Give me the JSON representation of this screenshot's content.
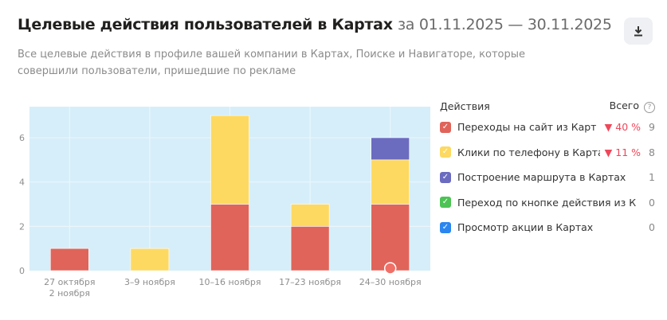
{
  "header": {
    "title": "Целевые действия пользователей в Картах",
    "period": "за 01.11.2025 — 30.11.2025",
    "subtitle": "Все целевые действия в профиле вашей компании в Картах, Поиске и Навигаторе, которые совершили пользователи, пришедшие по рекламе",
    "download_icon": "download-icon"
  },
  "legend": {
    "header_label": "Действия",
    "total_label": "Всего",
    "help": "?",
    "items": [
      {
        "label": "Переходы на сайт из Карт",
        "color": "#e0645a",
        "delta": "▼ 40 %",
        "total": "9"
      },
      {
        "label": "Клики по телефону в Картах",
        "color": "#fdd961",
        "delta": "▼ 11 %",
        "total": "8"
      },
      {
        "label": "Построение маршрута в Картах",
        "color": "#6b6bc0",
        "delta": "",
        "total": "1"
      },
      {
        "label": "Переход по кнопке действия из Карт",
        "color": "#4cc354",
        "delta": "",
        "total": "0"
      },
      {
        "label": "Просмотр акции в Картах",
        "color": "#2b86f0",
        "delta": "",
        "total": "0"
      }
    ]
  },
  "chart_data": {
    "type": "bar",
    "stacked": true,
    "title": "",
    "xlabel": "",
    "ylabel": "",
    "categories": [
      [
        "27 октября",
        "2 ноября"
      ],
      [
        "3–9 ноября"
      ],
      [
        "10–16 ноября"
      ],
      [
        "17–23 ноября"
      ],
      [
        "24–30 ноября"
      ]
    ],
    "series": [
      {
        "name": "Переходы на сайт из Карт",
        "color": "#e0645a",
        "values": [
          1,
          0,
          3,
          2,
          3
        ]
      },
      {
        "name": "Клики по телефону в Картах",
        "color": "#fdd961",
        "values": [
          0,
          1,
          4,
          1,
          2
        ]
      },
      {
        "name": "Построение маршрута в Картах",
        "color": "#6b6bc0",
        "values": [
          0,
          0,
          0,
          0,
          1
        ]
      }
    ],
    "yticks": [
      0,
      2,
      4,
      6
    ],
    "ylim": [
      0,
      7.4
    ],
    "grid": true,
    "background": "#d6eef9"
  }
}
